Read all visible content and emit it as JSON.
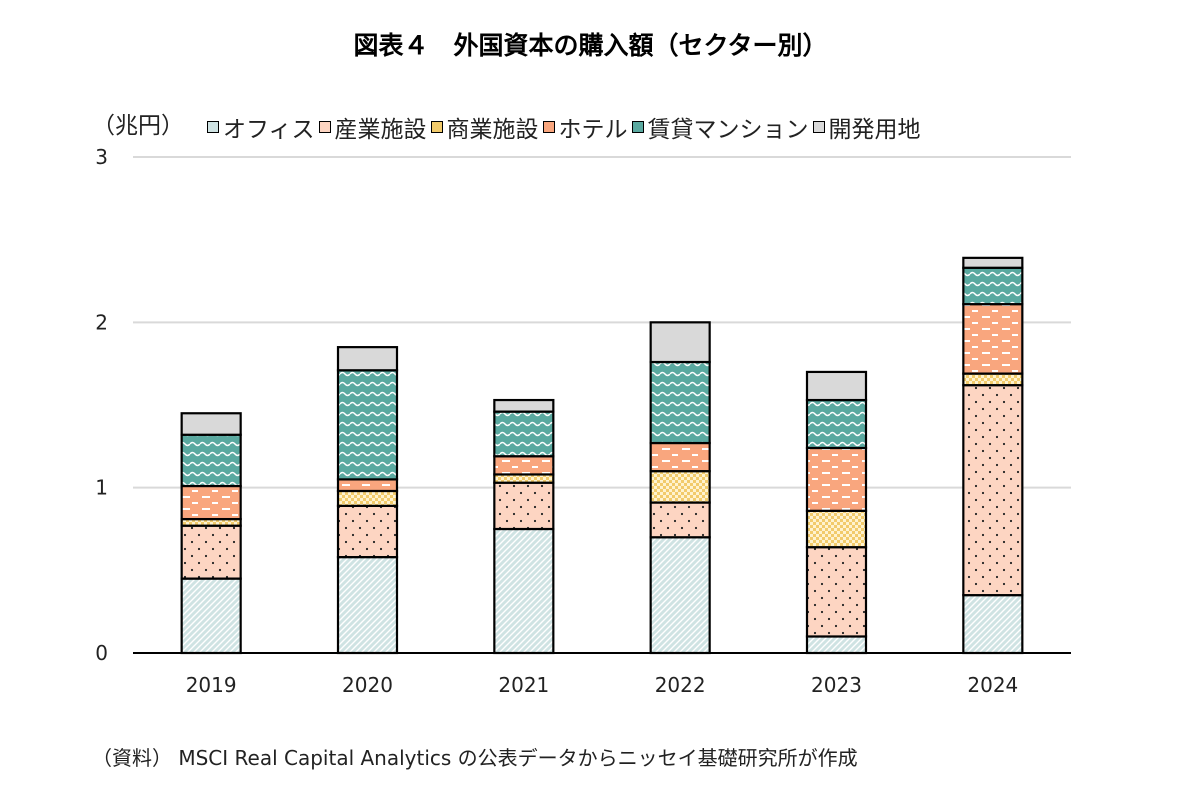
{
  "title": "図表４　外国資本の購入額（セクター別）",
  "unit_label": "（兆円）",
  "source": "（資料） MSCI Real Capital Analytics の公表データからニッセイ基礎研究所が作成",
  "colors": {
    "office": "#cfe3e3",
    "industrial": "#fdd5c2",
    "retail": "#f2cb6b",
    "hotel": "#f9a67e",
    "apartment": "#5aa9a0",
    "land": "#d9d9d9"
  },
  "chart_data": {
    "type": "bar",
    "stacked": true,
    "categories": [
      "2019",
      "2020",
      "2021",
      "2022",
      "2023",
      "2024"
    ],
    "series": [
      {
        "name": "オフィス",
        "key": "office",
        "pattern": "diagonal-hatch",
        "values": [
          0.45,
          0.58,
          0.75,
          0.7,
          0.1,
          0.35
        ]
      },
      {
        "name": "産業施設",
        "key": "industrial",
        "pattern": "dots",
        "values": [
          0.32,
          0.31,
          0.28,
          0.21,
          0.54,
          1.27
        ]
      },
      {
        "name": "商業施設",
        "key": "retail",
        "pattern": "checker",
        "values": [
          0.04,
          0.09,
          0.05,
          0.19,
          0.22,
          0.07
        ]
      },
      {
        "name": "ホテル",
        "key": "hotel",
        "pattern": "dashes",
        "values": [
          0.2,
          0.07,
          0.11,
          0.17,
          0.38,
          0.42
        ]
      },
      {
        "name": "賃貸マンション",
        "key": "apartment",
        "pattern": "waves",
        "values": [
          0.31,
          0.66,
          0.27,
          0.49,
          0.29,
          0.22
        ]
      },
      {
        "name": "開発用地",
        "key": "land",
        "pattern": "solid",
        "values": [
          0.13,
          0.14,
          0.07,
          0.24,
          0.17,
          0.06
        ]
      }
    ],
    "ylim": [
      0,
      3
    ],
    "yticks": [
      0,
      1,
      2,
      3
    ],
    "grid": true,
    "legend_position": "top"
  }
}
